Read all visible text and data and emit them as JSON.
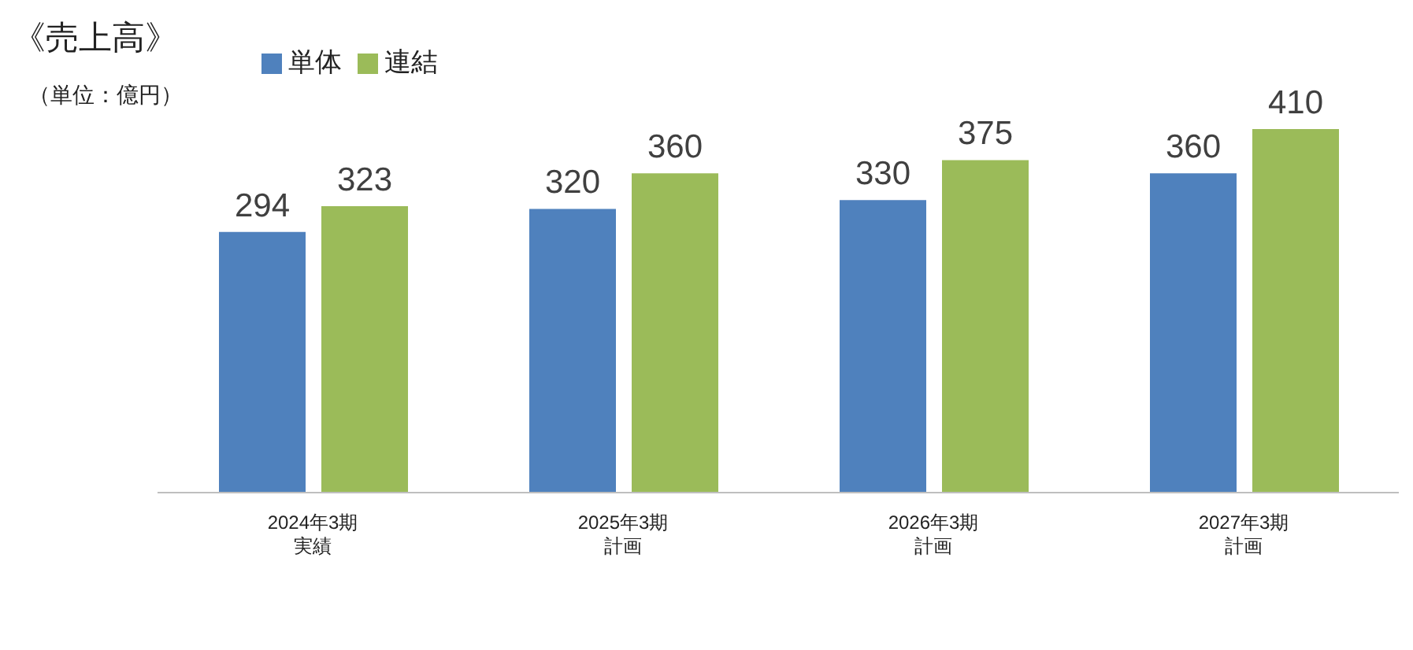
{
  "chart_data": {
    "type": "bar",
    "title": "《売上高》",
    "subtitle": "（単位：億円）",
    "categories": [
      "2024年3期実績",
      "2025年3期計画",
      "2026年3期計画",
      "2027年3期計画"
    ],
    "series": [
      {
        "name": "単体",
        "color": "#4f81bd",
        "values": [
          294,
          320,
          330,
          360
        ]
      },
      {
        "name": "連結",
        "color": "#9bbb59",
        "values": [
          323,
          360,
          375,
          410
        ]
      }
    ],
    "data_labels": true,
    "legend": "top",
    "grid": false
  }
}
